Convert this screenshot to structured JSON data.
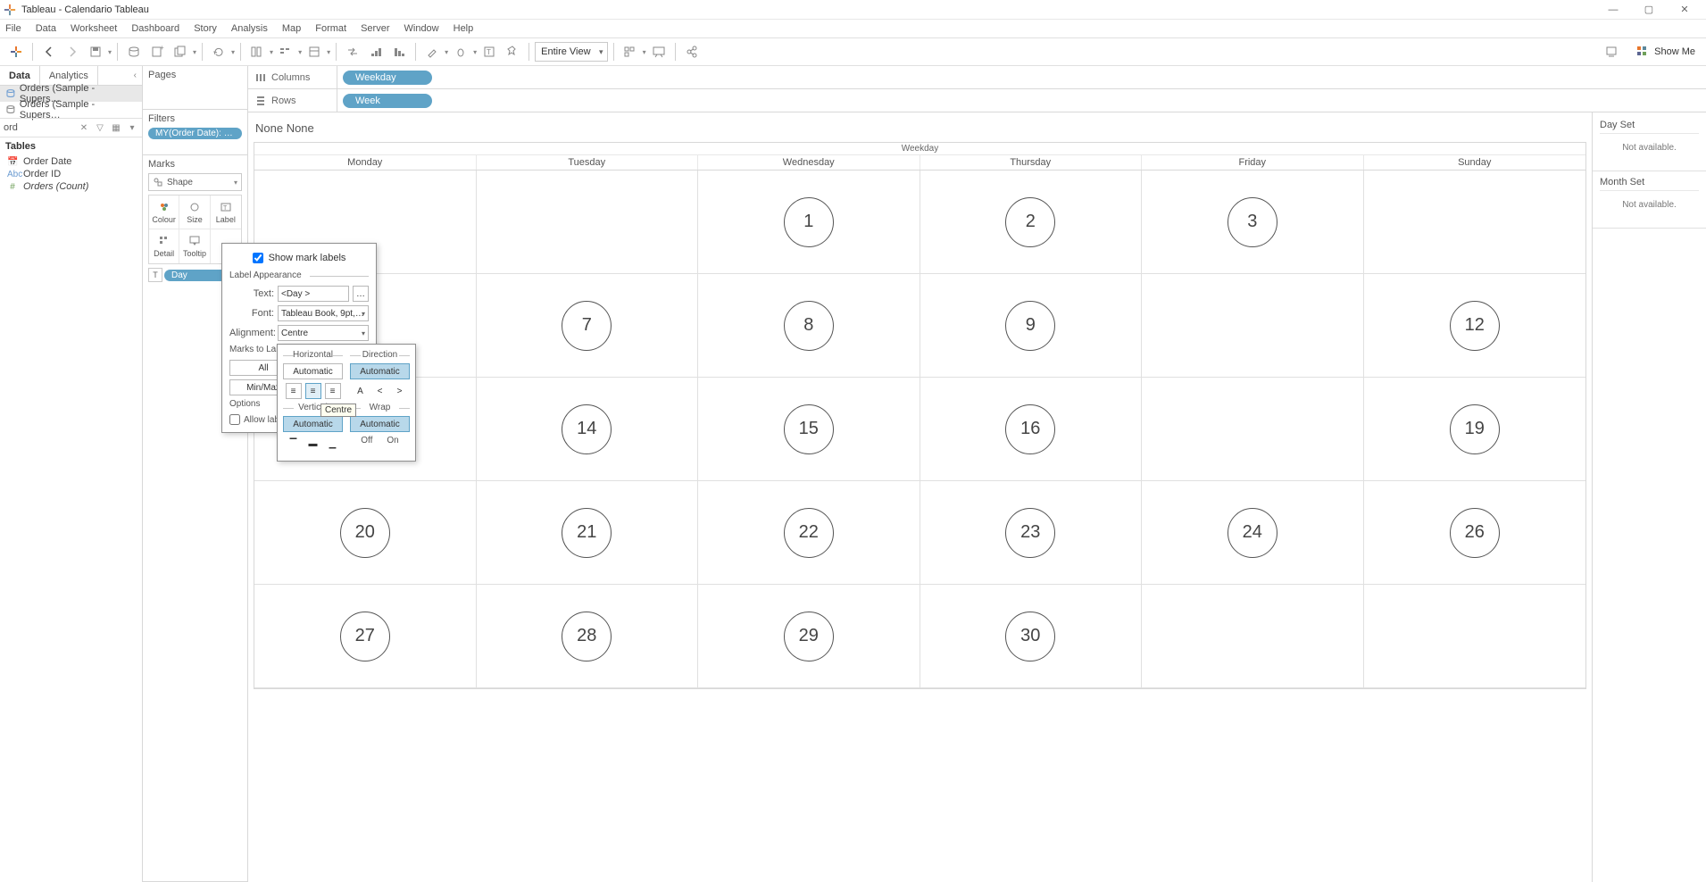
{
  "window": {
    "title": "Tableau - Calendario Tableau"
  },
  "menu": [
    "File",
    "Data",
    "Worksheet",
    "Dashboard",
    "Story",
    "Analysis",
    "Map",
    "Format",
    "Server",
    "Window",
    "Help"
  ],
  "toolbar": {
    "fit": "Entire View",
    "showme": "Show Me"
  },
  "left": {
    "tabs": {
      "data": "Data",
      "analytics": "Analytics"
    },
    "datasources": [
      {
        "label": "Orders (Sample - Supers…",
        "active": true
      },
      {
        "label": "Orders (Sample - Supers…",
        "active": false
      }
    ],
    "search": "ord",
    "tables_hdr": "Tables",
    "fields": [
      {
        "icon": "date",
        "label": "Order Date"
      },
      {
        "icon": "abc",
        "label": "Order ID"
      },
      {
        "icon": "num",
        "label": "Orders (Count)",
        "italic": true
      }
    ]
  },
  "mid": {
    "pages": "Pages",
    "filters": "Filters",
    "filter_pill": "MY(Order Date): gen…",
    "marks": "Marks",
    "mark_type": "Shape",
    "cells": {
      "colour": "Colour",
      "size": "Size",
      "label": "Label",
      "detail": "Detail",
      "tooltip": "Tooltip"
    },
    "mark_pill": "Day"
  },
  "shelves": {
    "columns_label": "Columns",
    "columns_pill": "Weekday",
    "rows_label": "Rows",
    "rows_pill": "Week"
  },
  "viz": {
    "title": "None None",
    "header": "Weekday",
    "weekdays": [
      "Monday",
      "Tuesday",
      "Wednesday",
      "Thursday",
      "Friday",
      "Sunday"
    ],
    "rows": [
      [
        "",
        "",
        "1",
        "2",
        "3",
        ""
      ],
      [
        "",
        "7",
        "8",
        "9",
        "",
        "12"
      ],
      [
        "",
        "14",
        "15",
        "16",
        "",
        "19"
      ],
      [
        "20",
        "21",
        "22",
        "23",
        "24",
        "26"
      ],
      [
        "27",
        "28",
        "29",
        "30",
        "",
        ""
      ]
    ],
    "circle_border": "#555555",
    "circle_text": "#444444"
  },
  "right": {
    "day_set": "Day Set",
    "na1": "Not available.",
    "month_set": "Month Set",
    "na2": "Not available."
  },
  "label_popup": {
    "show_labels": "Show mark labels",
    "appearance": "Label Appearance",
    "text_lbl": "Text:",
    "text_val": "<Day >",
    "font_lbl": "Font:",
    "font_val": "Tableau Book, 9pt,…",
    "align_lbl": "Alignment:",
    "align_val": "Centre",
    "marks_to_label": "Marks to Label",
    "all": "All",
    "minmax": "Min/Max",
    "options": "Options",
    "allow": "Allow lab"
  },
  "align_popup": {
    "horizontal": "Horizontal",
    "direction": "Direction",
    "vertical": "Vertical",
    "wrap": "Wrap",
    "automatic": "Automatic",
    "off": "Off",
    "on": "On",
    "tooltip": "Centre"
  }
}
